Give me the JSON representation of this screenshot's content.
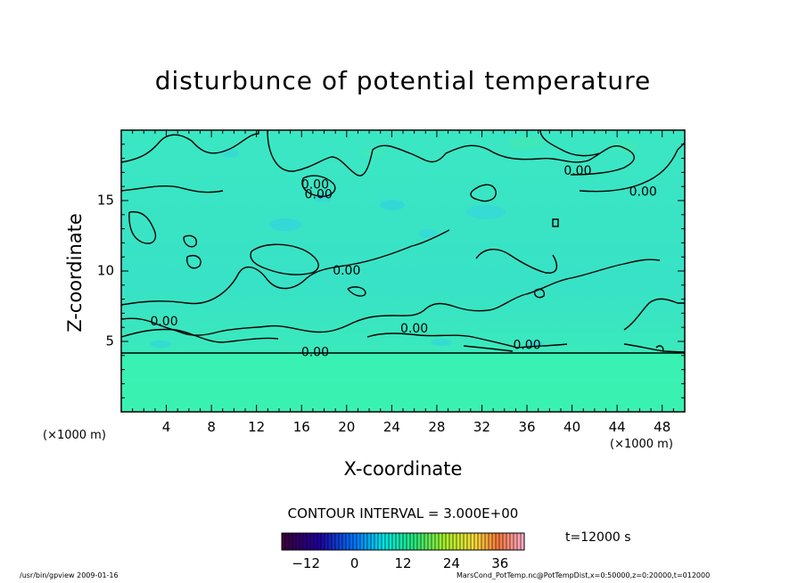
{
  "chart_data": {
    "type": "contour",
    "title": "disturbunce of potential temperature",
    "xlabel": "X-coordinate",
    "ylabel": "Z-coordinate",
    "x_unit": "(×1000 m)",
    "z_unit": "(×1000 m)",
    "xlim": [
      0,
      50
    ],
    "ylim": [
      0,
      20
    ],
    "x_ticks": [
      4,
      8,
      12,
      16,
      20,
      24,
      28,
      32,
      36,
      40,
      44,
      48
    ],
    "y_ticks": [
      5,
      10,
      15
    ],
    "contour_interval_text": "CONTOUR INTERVAL = 3.000E+00",
    "contour_labels": [
      {
        "text": "0.00",
        "x": 17.2,
        "z": 16.1
      },
      {
        "text": "0.00",
        "x": 17.5,
        "z": 15.4
      },
      {
        "text": "0.00",
        "x": 40.5,
        "z": 17.1
      },
      {
        "text": "0.00",
        "x": 46.3,
        "z": 15.6
      },
      {
        "text": "0.00",
        "x": 20.0,
        "z": 10.0
      },
      {
        "text": "0.00",
        "x": 3.8,
        "z": 6.4
      },
      {
        "text": "0.00",
        "x": 26.0,
        "z": 5.9
      },
      {
        "text": "0.00",
        "x": 36.0,
        "z": 4.7
      },
      {
        "text": "0.00",
        "x": 17.2,
        "z": 4.2
      }
    ],
    "colorbar": {
      "min": -18,
      "max": 42,
      "tick_values": [
        -12,
        0,
        12,
        24,
        36
      ],
      "tick_labels": [
        "−12",
        "0",
        "12",
        "24",
        "36"
      ]
    },
    "time_label": "t=12000 s"
  },
  "footer": {
    "left": "/usr/bin/gpview   2009-01-16",
    "right": "MarsCond_PotTemp.nc@PotTempDist,x=0:50000,z=0:20000,t=012000"
  },
  "colors": {
    "field_top": "#38e6c0",
    "field_bottom": "#3af2b2",
    "blue_patch": "#2fc8ea",
    "contour": "#000000"
  }
}
